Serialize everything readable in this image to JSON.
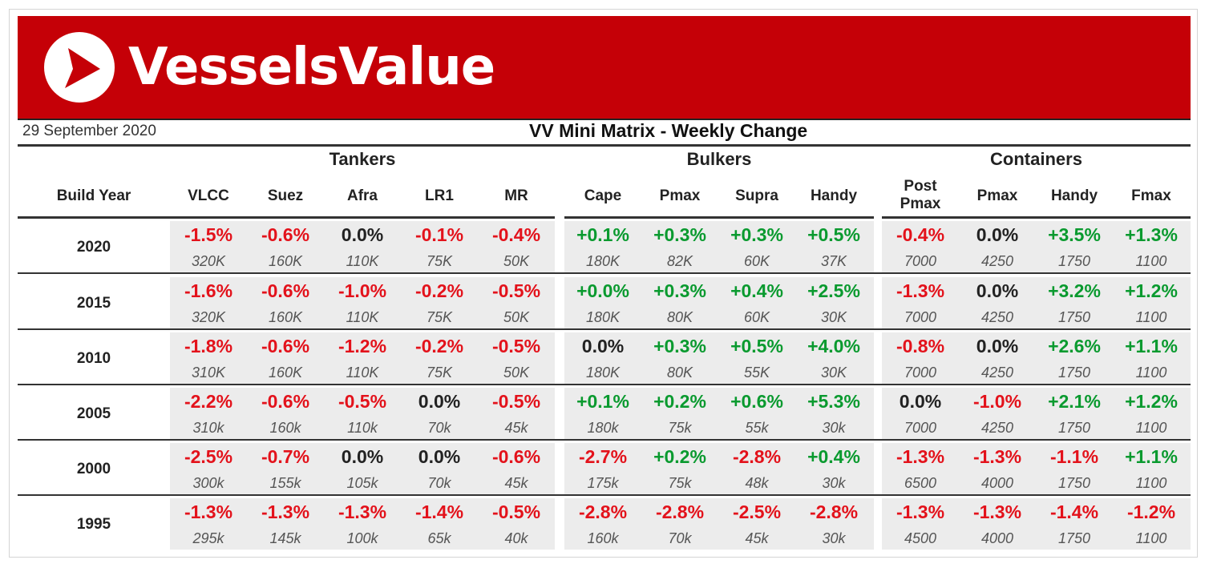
{
  "brand": {
    "name": "VesselsValue",
    "color": "#c50007"
  },
  "date": "29 September 2020",
  "title": "VV Mini Matrix - Weekly Change",
  "row_header": "Build Year",
  "groups": [
    {
      "name": "Tankers",
      "columns": [
        "VLCC",
        "Suez",
        "Afra",
        "LR1",
        "MR"
      ]
    },
    {
      "name": "Bulkers",
      "columns": [
        "Cape",
        "Pmax",
        "Supra",
        "Handy"
      ]
    },
    {
      "name": "Containers",
      "columns": [
        "Post\nPmax",
        "Pmax",
        "Handy",
        "Fmax"
      ]
    }
  ],
  "colors": {
    "negative": "#e3121b",
    "positive": "#0a9a2f",
    "zero": "#222222"
  },
  "rows": [
    {
      "year": "2020",
      "changes": [
        "-1.5%",
        "-0.6%",
        "0.0%",
        "-0.1%",
        "-0.4%",
        "+0.1%",
        "+0.3%",
        "+0.3%",
        "+0.5%",
        "-0.4%",
        "0.0%",
        "+3.5%",
        "+1.3%"
      ],
      "sizes": [
        "320K",
        "160K",
        "110K",
        "75K",
        "50K",
        "180K",
        "82K",
        "60K",
        "37K",
        "7000",
        "4250",
        "1750",
        "1100"
      ]
    },
    {
      "year": "2015",
      "changes": [
        "-1.6%",
        "-0.6%",
        "-1.0%",
        "-0.2%",
        "-0.5%",
        "+0.0%",
        "+0.3%",
        "+0.4%",
        "+2.5%",
        "-1.3%",
        "0.0%",
        "+3.2%",
        "+1.2%"
      ],
      "sizes": [
        "320K",
        "160K",
        "110K",
        "75K",
        "50K",
        "180K",
        "80K",
        "60K",
        "30K",
        "7000",
        "4250",
        "1750",
        "1100"
      ]
    },
    {
      "year": "2010",
      "changes": [
        "-1.8%",
        "-0.6%",
        "-1.2%",
        "-0.2%",
        "-0.5%",
        "0.0%",
        "+0.3%",
        "+0.5%",
        "+4.0%",
        "-0.8%",
        "0.0%",
        "+2.6%",
        "+1.1%"
      ],
      "sizes": [
        "310K",
        "160K",
        "110K",
        "75K",
        "50K",
        "180K",
        "80K",
        "55K",
        "30K",
        "7000",
        "4250",
        "1750",
        "1100"
      ]
    },
    {
      "year": "2005",
      "changes": [
        "-2.2%",
        "-0.6%",
        "-0.5%",
        "0.0%",
        "-0.5%",
        "+0.1%",
        "+0.2%",
        "+0.6%",
        "+5.3%",
        "0.0%",
        "-1.0%",
        "+2.1%",
        "+1.2%"
      ],
      "sizes": [
        "310k",
        "160k",
        "110k",
        "70k",
        "45k",
        "180k",
        "75k",
        "55k",
        "30k",
        "7000",
        "4250",
        "1750",
        "1100"
      ]
    },
    {
      "year": "2000",
      "changes": [
        "-2.5%",
        "-0.7%",
        "0.0%",
        "0.0%",
        "-0.6%",
        "-2.7%",
        "+0.2%",
        "-2.8%",
        "+0.4%",
        "-1.3%",
        "-1.3%",
        "-1.1%",
        "+1.1%"
      ],
      "sizes": [
        "300k",
        "155k",
        "105k",
        "70k",
        "45k",
        "175k",
        "75k",
        "48k",
        "30k",
        "6500",
        "4000",
        "1750",
        "1100"
      ]
    },
    {
      "year": "1995",
      "changes": [
        "-1.3%",
        "-1.3%",
        "-1.3%",
        "-1.4%",
        "-0.5%",
        "-2.8%",
        "-2.8%",
        "-2.5%",
        "-2.8%",
        "-1.3%",
        "-1.3%",
        "-1.4%",
        "-1.2%"
      ],
      "sizes": [
        "295k",
        "145k",
        "100k",
        "65k",
        "40k",
        "160k",
        "70k",
        "45k",
        "30k",
        "4500",
        "4000",
        "1750",
        "1100"
      ]
    }
  ]
}
